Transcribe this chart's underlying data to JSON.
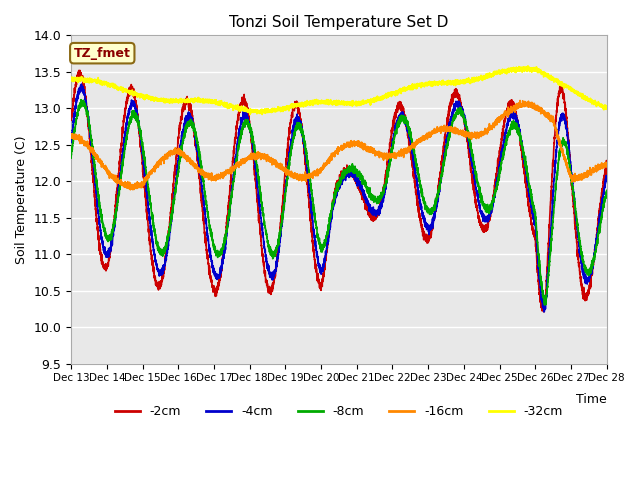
{
  "title": "Tonzi Soil Temperature Set D",
  "xlabel": "Time",
  "ylabel": "Soil Temperature (C)",
  "ylim": [
    9.5,
    14.0
  ],
  "annotation": "TZ_fmet",
  "legend_labels": [
    "-2cm",
    "-4cm",
    "-8cm",
    "-16cm",
    "-32cm"
  ],
  "line_colors": [
    "#cc0000",
    "#0000cc",
    "#00aa00",
    "#ff8800",
    "#ffff00"
  ],
  "bg_color": "#e8e8e8",
  "x_tick_labels": [
    "Dec 13",
    "Dec 14",
    "Dec 15",
    "Dec 16",
    "Dec 17",
    "Dec 18",
    "Dec 19",
    "Dec 20",
    "Dec 21",
    "Dec 22",
    "Dec 23",
    "Dec 24",
    "Dec 25",
    "Dec 26",
    "Dec 27",
    "Dec 28"
  ]
}
